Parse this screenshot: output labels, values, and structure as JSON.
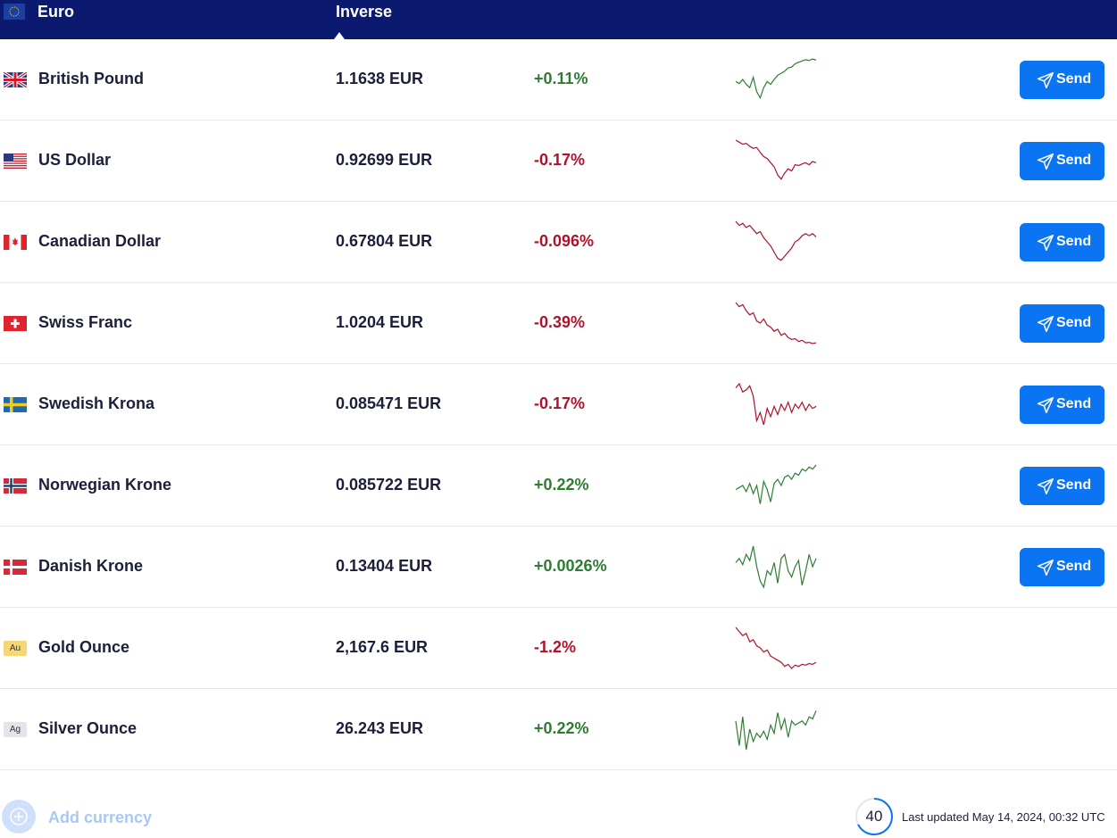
{
  "header": {
    "base_currency": "Euro",
    "inverse_label": "Inverse",
    "bg_color": "#0b1a6e"
  },
  "colors": {
    "positive": "#2e7d32",
    "negative": "#b0122b",
    "send_button": "#0a74f2"
  },
  "rows": [
    {
      "name": "British Pound",
      "flag": "gb-flag",
      "rate": "1.1638 EUR",
      "change": "+0.11%",
      "trend": "up",
      "send_label": "Send",
      "spark": [
        0.55,
        0.6,
        0.5,
        0.62,
        0.7,
        0.45,
        0.8,
        0.95,
        0.7,
        0.55,
        0.62,
        0.5,
        0.4,
        0.35,
        0.3,
        0.22,
        0.2,
        0.12,
        0.08,
        0.05,
        0.02,
        0.04,
        0.0,
        0.03
      ]
    },
    {
      "name": "US Dollar",
      "flag": "us-flag",
      "rate": "0.92699 EUR",
      "change": "-0.17%",
      "trend": "down",
      "send_label": "Send",
      "spark": [
        0.0,
        0.05,
        0.1,
        0.08,
        0.15,
        0.2,
        0.18,
        0.3,
        0.4,
        0.45,
        0.55,
        0.65,
        0.85,
        0.95,
        0.8,
        0.7,
        0.75,
        0.6,
        0.62,
        0.58,
        0.55,
        0.6,
        0.52,
        0.55
      ]
    },
    {
      "name": "Canadian Dollar",
      "flag": "ca-flag",
      "rate": "0.67804 EUR",
      "change": "-0.096%",
      "trend": "down",
      "send_label": "Send",
      "spark": [
        0.0,
        0.1,
        0.05,
        0.15,
        0.1,
        0.2,
        0.3,
        0.25,
        0.4,
        0.5,
        0.6,
        0.75,
        0.9,
        0.95,
        0.85,
        0.75,
        0.65,
        0.5,
        0.45,
        0.35,
        0.3,
        0.35,
        0.3,
        0.38
      ]
    },
    {
      "name": "Swiss Franc",
      "flag": "ch-flag",
      "rate": "1.0204 EUR",
      "change": "-0.39%",
      "trend": "down",
      "send_label": "Send",
      "spark": [
        0.0,
        0.1,
        0.05,
        0.2,
        0.3,
        0.25,
        0.45,
        0.5,
        0.4,
        0.55,
        0.6,
        0.7,
        0.65,
        0.8,
        0.75,
        0.85,
        0.9,
        0.88,
        0.95,
        0.92,
        0.98,
        0.97,
        1.0,
        0.98
      ]
    },
    {
      "name": "Swedish Krona",
      "flag": "se-flag",
      "rate": "0.085471 EUR",
      "change": "-0.17%",
      "trend": "down",
      "send_label": "Send",
      "spark": [
        0.1,
        0.0,
        0.2,
        0.15,
        0.05,
        0.3,
        0.9,
        0.7,
        1.0,
        0.6,
        0.8,
        0.55,
        0.75,
        0.5,
        0.65,
        0.45,
        0.7,
        0.5,
        0.6,
        0.45,
        0.65,
        0.5,
        0.6,
        0.55
      ]
    },
    {
      "name": "Norwegian Krone",
      "flag": "no-flag",
      "rate": "0.085722 EUR",
      "change": "+0.22%",
      "trend": "up",
      "send_label": "Send",
      "spark": [
        0.6,
        0.55,
        0.5,
        0.65,
        0.45,
        0.7,
        0.5,
        0.95,
        0.4,
        0.6,
        0.9,
        0.45,
        0.35,
        0.5,
        0.3,
        0.25,
        0.35,
        0.2,
        0.25,
        0.1,
        0.15,
        0.05,
        0.1,
        0.0
      ]
    },
    {
      "name": "Danish Krone",
      "flag": "dk-flag",
      "rate": "0.13404 EUR",
      "change": "+0.0026%",
      "trend": "up",
      "send_label": "Send",
      "spark": [
        0.4,
        0.3,
        0.45,
        0.2,
        0.35,
        0.0,
        0.5,
        0.85,
        1.0,
        0.6,
        0.7,
        0.4,
        0.9,
        0.3,
        0.2,
        0.6,
        0.75,
        0.5,
        0.35,
        0.95,
        0.6,
        0.2,
        0.5,
        0.3
      ]
    },
    {
      "name": "Gold Ounce",
      "flag": "gold-badge",
      "badge_text": "Au",
      "rate": "2,167.6 EUR",
      "change": "-1.2%",
      "trend": "down",
      "spark": [
        0.0,
        0.1,
        0.2,
        0.15,
        0.35,
        0.3,
        0.45,
        0.5,
        0.6,
        0.55,
        0.7,
        0.75,
        0.8,
        0.85,
        0.95,
        0.9,
        1.0,
        0.92,
        0.95,
        0.9,
        0.92,
        0.88,
        0.9,
        0.85
      ]
    },
    {
      "name": "Silver Ounce",
      "flag": "silver-badge",
      "badge_text": "Ag",
      "rate": "26.243 EUR",
      "change": "+0.22%",
      "trend": "up",
      "spark": [
        0.3,
        0.9,
        0.2,
        1.0,
        0.5,
        0.8,
        0.6,
        0.7,
        0.55,
        0.75,
        0.4,
        0.6,
        0.1,
        0.5,
        0.25,
        0.7,
        0.3,
        0.4,
        0.35,
        0.3,
        0.4,
        0.2,
        0.25,
        0.05
      ]
    }
  ],
  "footer": {
    "add_currency_label": "Add currency",
    "timer_value": "40",
    "last_updated": "Last updated May 14, 2024, 00:32 UTC"
  }
}
